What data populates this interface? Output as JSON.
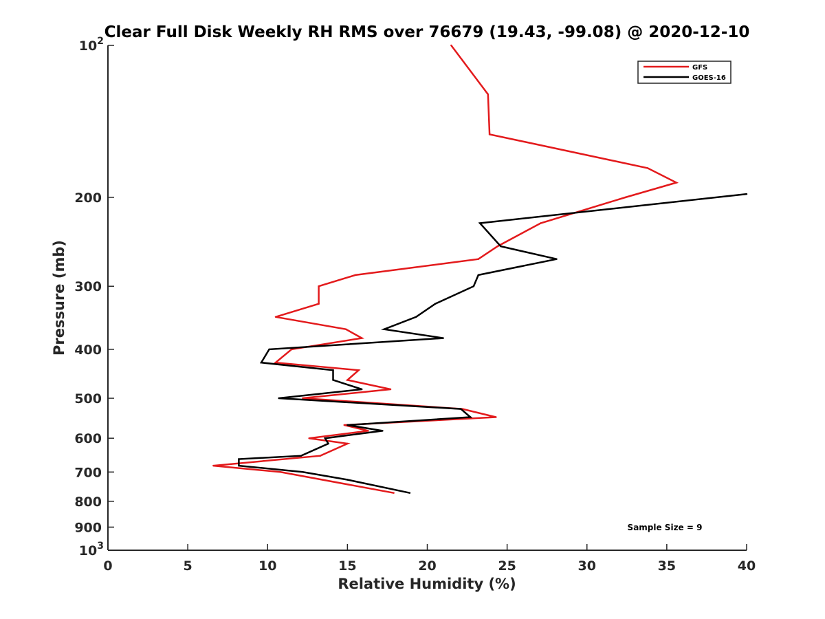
{
  "chart_data": {
    "type": "line",
    "title": "Clear Full Disk Weekly RH RMS over 76679 (19.43, -99.08) @ 2020-12-10",
    "xlabel": "Relative Humidity (%)",
    "ylabel": "Pressure (mb)",
    "xlim": [
      0,
      40
    ],
    "ylim": [
      100,
      1000
    ],
    "y_scale": "log",
    "y_reversed": true,
    "grid": false,
    "legend_position": "top-right",
    "x_ticks": [
      "0",
      "5",
      "10",
      "15",
      "20",
      "25",
      "30",
      "35",
      "40"
    ],
    "y_ticks": [
      {
        "value": 100,
        "base": "10",
        "exp": "2"
      },
      {
        "value": 200,
        "base": "200",
        "exp": ""
      },
      {
        "value": 300,
        "base": "300",
        "exp": ""
      },
      {
        "value": 400,
        "base": "400",
        "exp": ""
      },
      {
        "value": 500,
        "base": "500",
        "exp": ""
      },
      {
        "value": 600,
        "base": "600",
        "exp": ""
      },
      {
        "value": 700,
        "base": "700",
        "exp": ""
      },
      {
        "value": 800,
        "base": "800",
        "exp": ""
      },
      {
        "value": 900,
        "base": "900",
        "exp": ""
      },
      {
        "value": 1000,
        "base": "10",
        "exp": "3"
      }
    ],
    "series": [
      {
        "name": "GFS",
        "color": "#e31a1c",
        "points": [
          [
            21.5,
            100
          ],
          [
            23.8,
            125
          ],
          [
            23.9,
            150
          ],
          [
            33.8,
            175
          ],
          [
            35.6,
            187
          ],
          [
            32.4,
            200
          ],
          [
            27.1,
            225
          ],
          [
            24.4,
            250
          ],
          [
            23.2,
            265
          ],
          [
            15.5,
            285
          ],
          [
            13.2,
            300
          ],
          [
            13.2,
            325
          ],
          [
            10.5,
            345
          ],
          [
            14.9,
            365
          ],
          [
            15.9,
            380
          ],
          [
            11.5,
            400
          ],
          [
            10.5,
            425
          ],
          [
            15.7,
            440
          ],
          [
            15.0,
            460
          ],
          [
            17.7,
            480
          ],
          [
            12.2,
            500
          ],
          [
            22.2,
            525
          ],
          [
            24.3,
            545
          ],
          [
            14.8,
            565
          ],
          [
            16.3,
            580
          ],
          [
            12.6,
            600
          ],
          [
            15.0,
            615
          ],
          [
            13.3,
            650
          ],
          [
            6.6,
            680
          ],
          [
            10.8,
            700
          ],
          [
            17.9,
            770
          ]
        ]
      },
      {
        "name": "GOES-16",
        "color": "#000000",
        "points": [
          [
            40.0,
            197
          ],
          [
            23.3,
            225
          ],
          [
            24.6,
            250
          ],
          [
            28.1,
            265
          ],
          [
            23.2,
            285
          ],
          [
            22.9,
            300
          ],
          [
            20.5,
            325
          ],
          [
            19.3,
            345
          ],
          [
            17.3,
            365
          ],
          [
            21.0,
            380
          ],
          [
            10.1,
            400
          ],
          [
            9.6,
            425
          ],
          [
            14.1,
            440
          ],
          [
            14.1,
            460
          ],
          [
            15.9,
            480
          ],
          [
            10.7,
            500
          ],
          [
            22.1,
            525
          ],
          [
            22.7,
            545
          ],
          [
            15.0,
            565
          ],
          [
            17.2,
            580
          ],
          [
            13.6,
            600
          ],
          [
            13.8,
            615
          ],
          [
            12.1,
            650
          ],
          [
            8.2,
            660
          ],
          [
            8.2,
            680
          ],
          [
            12.2,
            700
          ],
          [
            15.0,
            725
          ],
          [
            18.9,
            770
          ]
        ]
      }
    ],
    "annotation": "Sample Size = 9"
  }
}
